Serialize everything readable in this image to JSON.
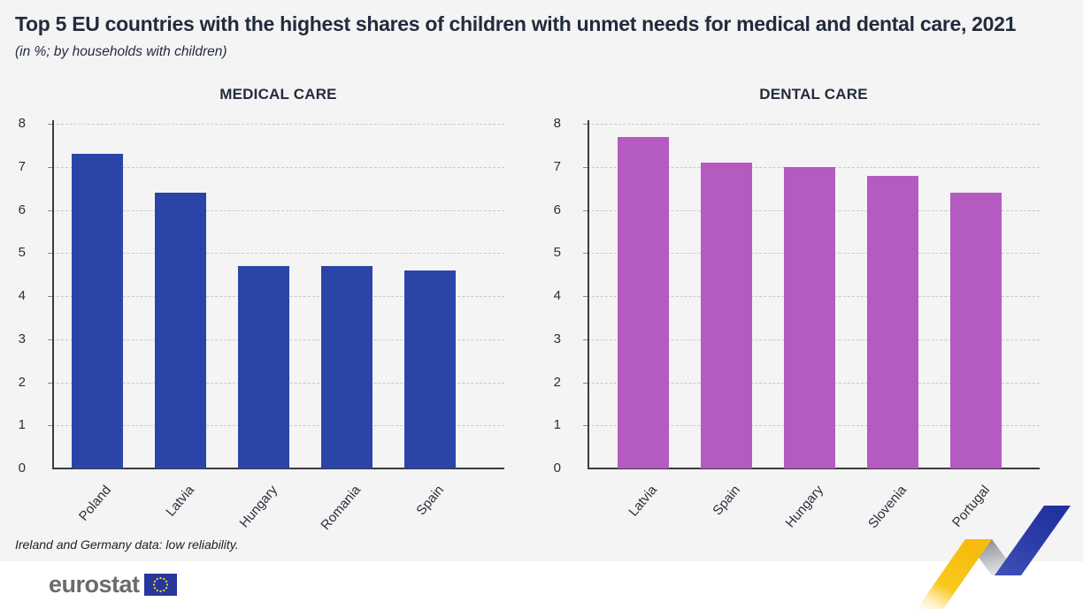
{
  "page": {
    "title": "Top 5 EU countries with the highest shares of children with unmet needs for medical and dental care, 2021",
    "subtitle": "(in %; by households with children)",
    "footnote": "Ireland and Germany data: low reliability."
  },
  "footer": {
    "brand_text": "eurostat",
    "flag_icon": "eu-flag-icon"
  },
  "colors": {
    "background": "#f4f4f5",
    "title_text": "#232b3c",
    "medical_bar": "#2a45a7",
    "dental_bar": "#b45ac1",
    "grid_line": "#c9c9c9",
    "axis_line": "#3c3c3c",
    "brand_gray": "#6a6b6d",
    "flag_blue": "#26379e",
    "star_yellow": "#fdd51c",
    "motif_yellow": "#fac613",
    "motif_gray": "#9aa0a8",
    "motif_blue": "#2d3fa8"
  },
  "chart_data": [
    {
      "type": "bar",
      "title": "MEDICAL CARE",
      "categories": [
        "Poland",
        "Latvia",
        "Hungary",
        "Romania",
        "Spain"
      ],
      "values": [
        7.3,
        6.4,
        4.7,
        4.7,
        4.6
      ],
      "unit": "%",
      "ylim": [
        0,
        8
      ],
      "yticks": [
        0,
        1,
        2,
        3,
        4,
        5,
        6,
        7,
        8
      ],
      "grid": "horizontal-dashed",
      "legend": "none"
    },
    {
      "type": "bar",
      "title": "DENTAL CARE",
      "categories": [
        "Latvia",
        "Spain",
        "Hungary",
        "Slovenia",
        "Portugal"
      ],
      "values": [
        7.7,
        7.1,
        7.0,
        6.8,
        6.4
      ],
      "unit": "%",
      "ylim": [
        0,
        8
      ],
      "yticks": [
        0,
        1,
        2,
        3,
        4,
        5,
        6,
        7,
        8
      ],
      "grid": "horizontal-dashed",
      "legend": "none"
    }
  ]
}
